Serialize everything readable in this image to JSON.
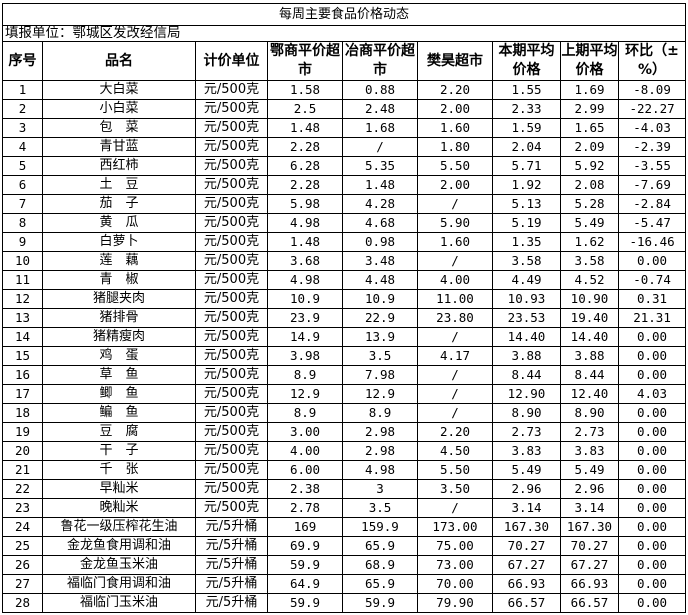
{
  "title": "每周主要食品价格动态",
  "reporter": "填报单位：鄂城区发改经信局",
  "headers": [
    "序号",
    "品名",
    "计价单位",
    "鄂商平价超市",
    "冶商平价超市",
    "樊昊超市",
    "本期平均价格",
    "上期平均价格",
    "环比（±%）"
  ],
  "rows": [
    [
      "1",
      "大白菜",
      "元/500克",
      "1.58",
      "0.88",
      "2.20",
      "1.55",
      "1.69",
      "-8.09"
    ],
    [
      "2",
      "小白菜",
      "元/500克",
      "2.5",
      "2.48",
      "2.00",
      "2.33",
      "2.99",
      "-22.27"
    ],
    [
      "3",
      "包　菜",
      "元/500克",
      "1.48",
      "1.68",
      "1.60",
      "1.59",
      "1.65",
      "-4.03"
    ],
    [
      "4",
      "青甘蓝",
      "元/500克",
      "2.28",
      "/",
      "1.80",
      "2.04",
      "2.09",
      "-2.39"
    ],
    [
      "5",
      "西红柿",
      "元/500克",
      "6.28",
      "5.35",
      "5.50",
      "5.71",
      "5.92",
      "-3.55"
    ],
    [
      "6",
      "土　豆",
      "元/500克",
      "2.28",
      "1.48",
      "2.00",
      "1.92",
      "2.08",
      "-7.69"
    ],
    [
      "7",
      "茄　子",
      "元/500克",
      "5.98",
      "4.28",
      "/",
      "5.13",
      "5.28",
      "-2.84"
    ],
    [
      "8",
      "黄　瓜",
      "元/500克",
      "4.98",
      "4.68",
      "5.90",
      "5.19",
      "5.49",
      "-5.47"
    ],
    [
      "9",
      "白萝卜",
      "元/500克",
      "1.48",
      "0.98",
      "1.60",
      "1.35",
      "1.62",
      "-16.46"
    ],
    [
      "10",
      "莲　藕",
      "元/500克",
      "3.68",
      "3.48",
      "/",
      "3.58",
      "3.58",
      "0.00"
    ],
    [
      "11",
      "青　椒",
      "元/500克",
      "4.98",
      "4.48",
      "4.00",
      "4.49",
      "4.52",
      "-0.74"
    ],
    [
      "12",
      "猪腿夹肉",
      "元/500克",
      "10.9",
      "10.9",
      "11.00",
      "10.93",
      "10.90",
      "0.31"
    ],
    [
      "13",
      "猪排骨",
      "元/500克",
      "23.9",
      "22.9",
      "23.80",
      "23.53",
      "19.40",
      "21.31"
    ],
    [
      "14",
      "猪精瘦肉",
      "元/500克",
      "14.9",
      "13.9",
      "/",
      "14.40",
      "14.40",
      "0.00"
    ],
    [
      "15",
      "鸡　蛋",
      "元/500克",
      "3.98",
      "3.5",
      "4.17",
      "3.88",
      "3.88",
      "0.00"
    ],
    [
      "16",
      "草　鱼",
      "元/500克",
      "8.9",
      "7.98",
      "/",
      "8.44",
      "8.44",
      "0.00"
    ],
    [
      "17",
      "鲫　鱼",
      "元/500克",
      "12.9",
      "12.9",
      "/",
      "12.90",
      "12.40",
      "4.03"
    ],
    [
      "18",
      "鳊　鱼",
      "元/500克",
      "8.9",
      "8.9",
      "/",
      "8.90",
      "8.90",
      "0.00"
    ],
    [
      "19",
      "豆　腐",
      "元/500克",
      "3.00",
      "2.98",
      "2.20",
      "2.73",
      "2.73",
      "0.00"
    ],
    [
      "20",
      "干　子",
      "元/500克",
      "4.00",
      "2.98",
      "4.50",
      "3.83",
      "3.83",
      "0.00"
    ],
    [
      "21",
      "千　张",
      "元/500克",
      "6.00",
      "4.98",
      "5.50",
      "5.49",
      "5.49",
      "0.00"
    ],
    [
      "22",
      "早籼米",
      "元/500克",
      "2.38",
      "3",
      "3.50",
      "2.96",
      "2.96",
      "0.00"
    ],
    [
      "23",
      "晚籼米",
      "元/500克",
      "2.78",
      "3.5",
      "/",
      "3.14",
      "3.14",
      "0.00"
    ],
    [
      "24",
      "鲁花一级压榨花生油",
      "元/5升桶",
      "169",
      "159.9",
      "173.00",
      "167.30",
      "167.30",
      "0.00"
    ],
    [
      "25",
      "金龙鱼食用调和油",
      "元/5升桶",
      "69.9",
      "65.9",
      "75.00",
      "70.27",
      "70.27",
      "0.00"
    ],
    [
      "26",
      "金龙鱼玉米油",
      "元/5升桶",
      "59.9",
      "68.9",
      "73.00",
      "67.27",
      "67.27",
      "0.00"
    ],
    [
      "27",
      "福临门食用调和油",
      "元/5升桶",
      "64.9",
      "65.9",
      "70.00",
      "66.93",
      "66.93",
      "0.00"
    ],
    [
      "28",
      "福临门玉米油",
      "元/5升桶",
      "59.9",
      "59.9",
      "79.90",
      "66.57",
      "66.57",
      "0.00"
    ]
  ]
}
